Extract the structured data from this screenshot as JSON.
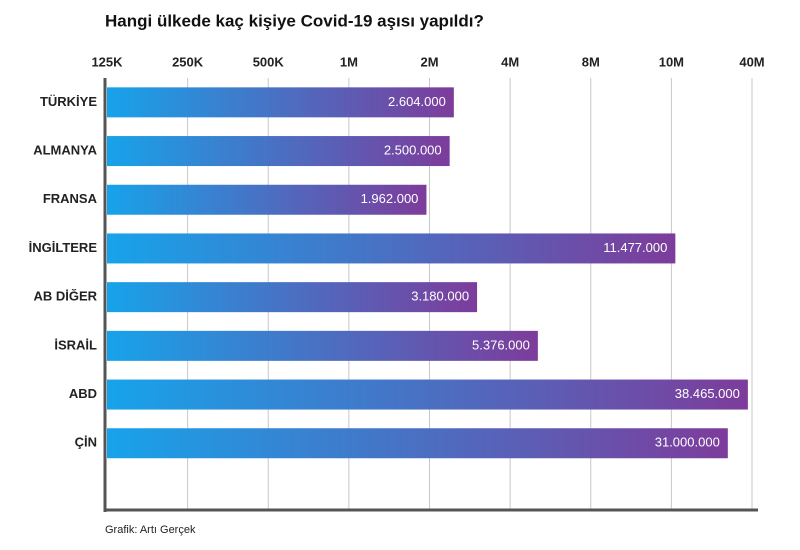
{
  "chart_data": {
    "type": "bar",
    "orientation": "horizontal",
    "title": "Hangi ülkede kaç kişiye Covid-19 aşısı yapıldı?",
    "source": "Grafik: Artı Gerçek",
    "categories": [
      "TÜRKİYE",
      "ALMANYA",
      "FRANSA",
      "İNGİLTERE",
      "AB DİĞER",
      "İSRAİL",
      "ABD",
      "ÇİN"
    ],
    "values": [
      2604000,
      2500000,
      1962000,
      11477000,
      3180000,
      5376000,
      38465000,
      31000000
    ],
    "value_labels": [
      "2.604.000",
      "2.500.000",
      "1.962.000",
      "11.477.000",
      "3.180.000",
      "5.376.000",
      "38.465.000",
      "31.000.000"
    ],
    "color": [
      "#17a3ea",
      "#7d3c9b"
    ],
    "xlim": [
      125000,
      40000000
    ],
    "xticks": [
      {
        "value": 125000,
        "label": "125K"
      },
      {
        "value": 250000,
        "label": "250K"
      },
      {
        "value": 500000,
        "label": "500K"
      },
      {
        "value": 1000000,
        "label": "1M"
      },
      {
        "value": 2000000,
        "label": "2M"
      },
      {
        "value": 4000000,
        "label": "4M"
      },
      {
        "value": 8000000,
        "label": "8M"
      },
      {
        "value": 10000000,
        "label": "10M"
      },
      {
        "value": 40000000,
        "label": "40M"
      }
    ],
    "grid": true
  }
}
